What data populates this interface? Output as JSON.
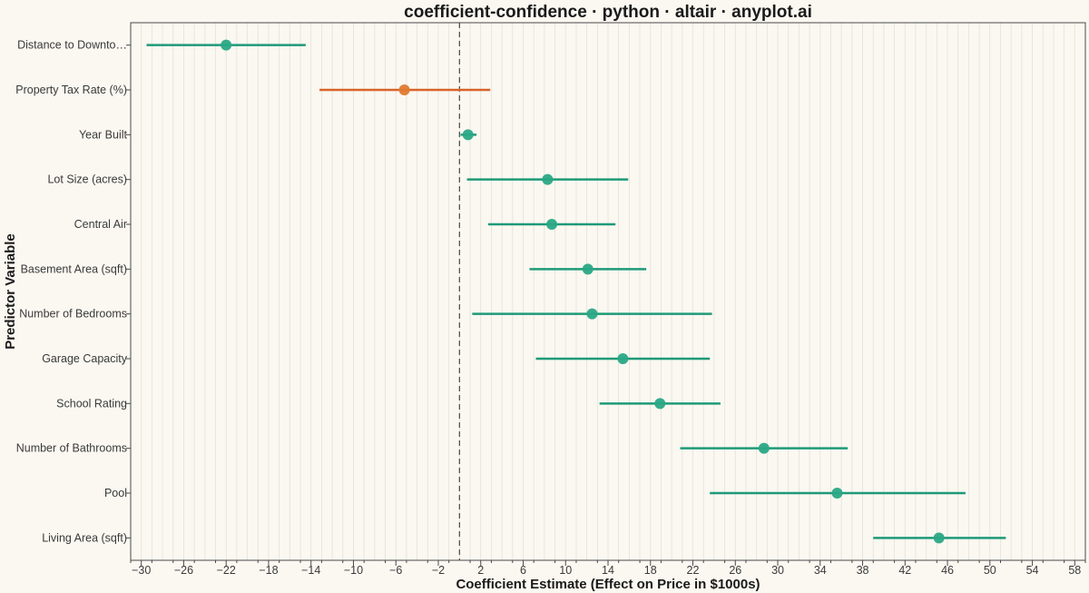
{
  "chart_data": {
    "type": "dot-errorbar",
    "title": "coefficient-confidence · python · altair · anyplot.ai",
    "xlabel": "Coefficient Estimate (Effect on Price in $1000s)",
    "ylabel": "Predictor Variable",
    "xlim": [
      -31,
      59
    ],
    "x_ticks": [
      -30,
      -26,
      -22,
      -18,
      -14,
      -10,
      -6,
      -2,
      2,
      6,
      10,
      14,
      18,
      22,
      26,
      30,
      34,
      38,
      42,
      46,
      50,
      54,
      58
    ],
    "reference_line": 0,
    "grid": "vertical",
    "colors": {
      "positive": "#2AA885",
      "negative": "#E07A30",
      "ci_positive": "#1E9A78",
      "ci_negative": "#D8642A",
      "reference": "#555555"
    },
    "series": [
      {
        "label": "Distance to Downto…",
        "estimate": -22.0,
        "ci_lower": -29.5,
        "ci_upper": -14.5,
        "significant": true,
        "sign": "negative-green"
      },
      {
        "label": "Property Tax Rate (%)",
        "estimate": -5.2,
        "ci_lower": -13.2,
        "ci_upper": 2.9,
        "significant": false
      },
      {
        "label": "Year Built",
        "estimate": 0.8,
        "ci_lower": 0.1,
        "ci_upper": 1.6,
        "significant": true
      },
      {
        "label": "Lot Size (acres)",
        "estimate": 8.3,
        "ci_lower": 0.7,
        "ci_upper": 15.9,
        "significant": true
      },
      {
        "label": "Central Air",
        "estimate": 8.7,
        "ci_lower": 2.7,
        "ci_upper": 14.7,
        "significant": true
      },
      {
        "label": "Basement Area (sqft)",
        "estimate": 12.1,
        "ci_lower": 6.6,
        "ci_upper": 17.6,
        "significant": true
      },
      {
        "label": "Number of Bedrooms",
        "estimate": 12.5,
        "ci_lower": 1.2,
        "ci_upper": 23.8,
        "significant": true
      },
      {
        "label": "Garage Capacity",
        "estimate": 15.4,
        "ci_lower": 7.2,
        "ci_upper": 23.6,
        "significant": true
      },
      {
        "label": "School Rating",
        "estimate": 18.9,
        "ci_lower": 13.2,
        "ci_upper": 24.6,
        "significant": true
      },
      {
        "label": "Number of Bathrooms",
        "estimate": 28.7,
        "ci_lower": 20.8,
        "ci_upper": 36.6,
        "significant": true
      },
      {
        "label": "Pool",
        "estimate": 35.6,
        "ci_lower": 23.6,
        "ci_upper": 47.7,
        "significant": true
      },
      {
        "label": "Living Area (sqft)",
        "estimate": 45.2,
        "ci_lower": 39.0,
        "ci_upper": 51.5,
        "significant": true
      }
    ]
  }
}
